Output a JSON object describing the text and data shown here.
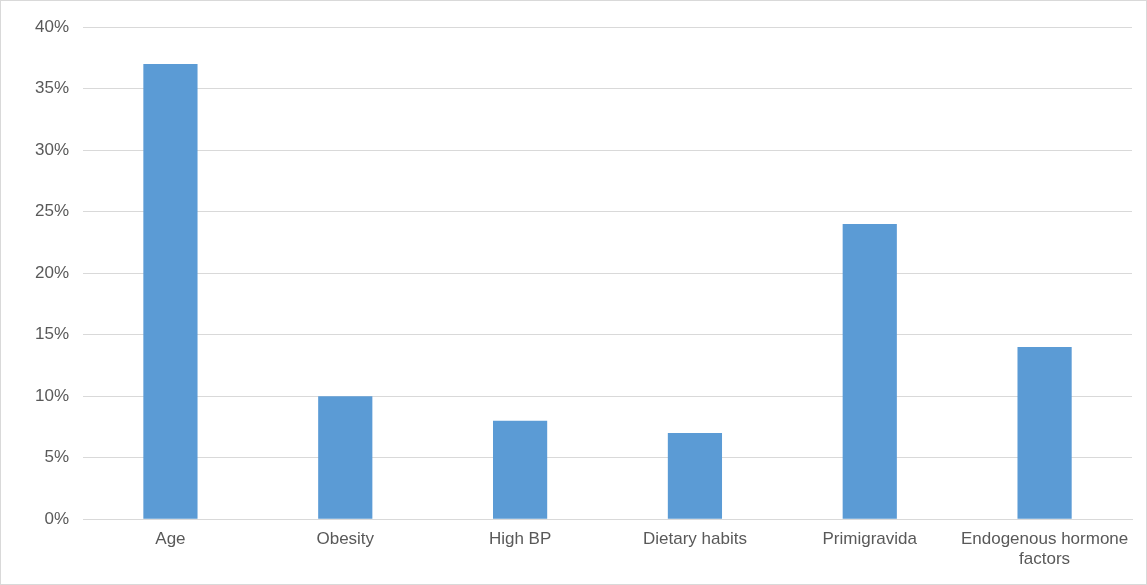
{
  "chart_data": {
    "type": "bar",
    "categories": [
      "Age",
      "Obesity",
      "High BP",
      "Dietary habits",
      "Primigravida",
      "Endogenous hormone factors"
    ],
    "values": [
      37,
      10,
      8,
      7,
      24,
      14
    ],
    "color": "#5b9bd5",
    "ylim": [
      0,
      40
    ],
    "yticks": [
      {
        "value": 0,
        "label": "0%"
      },
      {
        "value": 5,
        "label": "5%"
      },
      {
        "value": 10,
        "label": "10%"
      },
      {
        "value": 15,
        "label": "15%"
      },
      {
        "value": 20,
        "label": "20%"
      },
      {
        "value": 25,
        "label": "25%"
      },
      {
        "value": 30,
        "label": "30%"
      },
      {
        "value": 35,
        "label": "35%"
      },
      {
        "value": 40,
        "label": "40%"
      }
    ],
    "grid": "y",
    "legend": false
  }
}
